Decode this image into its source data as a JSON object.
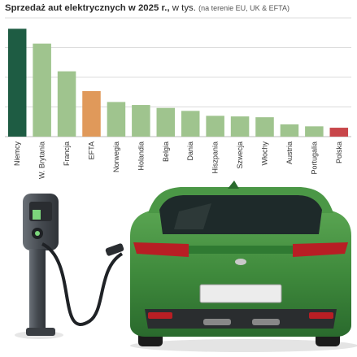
{
  "chart_data": {
    "type": "bar",
    "title": "Sprzedaż aut elektrycznych w 2025 r.,",
    "unit": "w tys.",
    "note": "(na terenie EU, UK & EFTA)",
    "xlabel": "",
    "ylabel": "",
    "grid": true,
    "ylim": [
      0,
      600
    ],
    "categories": [
      "Niemcy",
      "W. Brytania",
      "Francja",
      "EFTA",
      "Norwegia",
      "Holandia",
      "Belgia",
      "Dania",
      "Hiszpania",
      "Szwecja",
      "Włochy",
      "Austria",
      "Portugalia",
      "Polska"
    ],
    "values": [
      545,
      470,
      330,
      230,
      175,
      160,
      145,
      130,
      105,
      102,
      98,
      62,
      52,
      45
    ],
    "colors": [
      "#1e5c43",
      "#9fc48e",
      "#9fc48e",
      "#e0995a",
      "#9fc48e",
      "#9fc48e",
      "#9fc48e",
      "#9fc48e",
      "#9fc48e",
      "#9fc48e",
      "#9fc48e",
      "#9fc48e",
      "#9fc48e",
      "#c8464a"
    ]
  },
  "illustration": {
    "subject": "green electric hatchback charging at a wall charger",
    "car_color": "#3f8a3c",
    "charger_color": "#4a4f55",
    "charger_light_color": "#7cd67c"
  }
}
